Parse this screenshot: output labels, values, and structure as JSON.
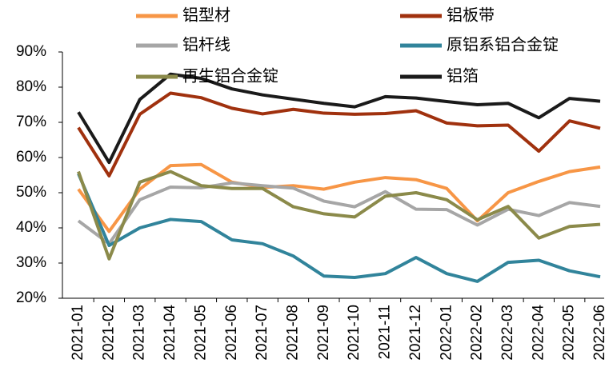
{
  "chart_data": {
    "type": "line",
    "categories": [
      "2021-01",
      "2021-02",
      "2021-03",
      "2021-04",
      "2021-05",
      "2021-06",
      "2021-07",
      "2021-08",
      "2021-09",
      "2021-10",
      "2021-11",
      "2021-12",
      "2022-01",
      "2022-02",
      "2022-03",
      "2022-04",
      "2022-05",
      "2022-06"
    ],
    "series": [
      {
        "name": "铝型材",
        "color": "#f79646",
        "values": [
          51,
          39,
          51,
          57.7,
          58,
          53,
          51.5,
          52,
          51,
          53,
          54.3,
          53.7,
          51.2,
          42,
          50,
          53.2,
          56,
          57.3
        ]
      },
      {
        "name": "铝板带",
        "color": "#a0310e",
        "values": [
          68.5,
          54.8,
          72.3,
          78.3,
          77,
          74,
          72.4,
          73.7,
          72.6,
          72.3,
          72.5,
          73.3,
          69.8,
          69,
          69.2,
          61.8,
          70.4,
          68.3
        ]
      },
      {
        "name": "铝杆线",
        "color": "#a6a6a6",
        "values": [
          42,
          35.5,
          48,
          51.6,
          51.4,
          52.8,
          52,
          51.3,
          47.6,
          46,
          50.3,
          45.3,
          45.2,
          40.8,
          45.3,
          43.5,
          47.2,
          46.1
        ]
      },
      {
        "name": "原铝系铝合金锭",
        "color": "#31849b",
        "values": [
          55.4,
          35,
          40,
          42.4,
          41.8,
          36.6,
          35.5,
          32,
          26.3,
          25.9,
          27,
          31.6,
          27,
          24.8,
          30.2,
          30.8,
          27.8,
          26.1
        ]
      },
      {
        "name": "再生铝合金锭",
        "color": "#8b8a4a",
        "values": [
          56,
          31.2,
          53,
          56,
          52,
          51.2,
          51.2,
          46,
          44,
          43.1,
          49,
          50,
          48,
          42.3,
          46.1,
          37.1,
          40.4,
          41
        ]
      },
      {
        "name": "铝箔",
        "color": "#1a1a1a",
        "values": [
          72.9,
          58.6,
          76.5,
          83.7,
          82.5,
          79.5,
          77.8,
          76.6,
          75.4,
          74.4,
          77.3,
          76.9,
          75.9,
          75,
          75.4,
          71.3,
          76.8,
          76
        ]
      }
    ],
    "ylim": [
      20,
      90
    ],
    "yticks": [
      {
        "value": 20,
        "label": "20%"
      },
      {
        "value": 30,
        "label": "30%"
      },
      {
        "value": 40,
        "label": "40%"
      },
      {
        "value": 50,
        "label": "50%"
      },
      {
        "value": 60,
        "label": "60%"
      },
      {
        "value": 70,
        "label": "70%"
      },
      {
        "value": 80,
        "label": "80%"
      },
      {
        "value": 90,
        "label": "90%"
      }
    ],
    "legend": "top"
  }
}
